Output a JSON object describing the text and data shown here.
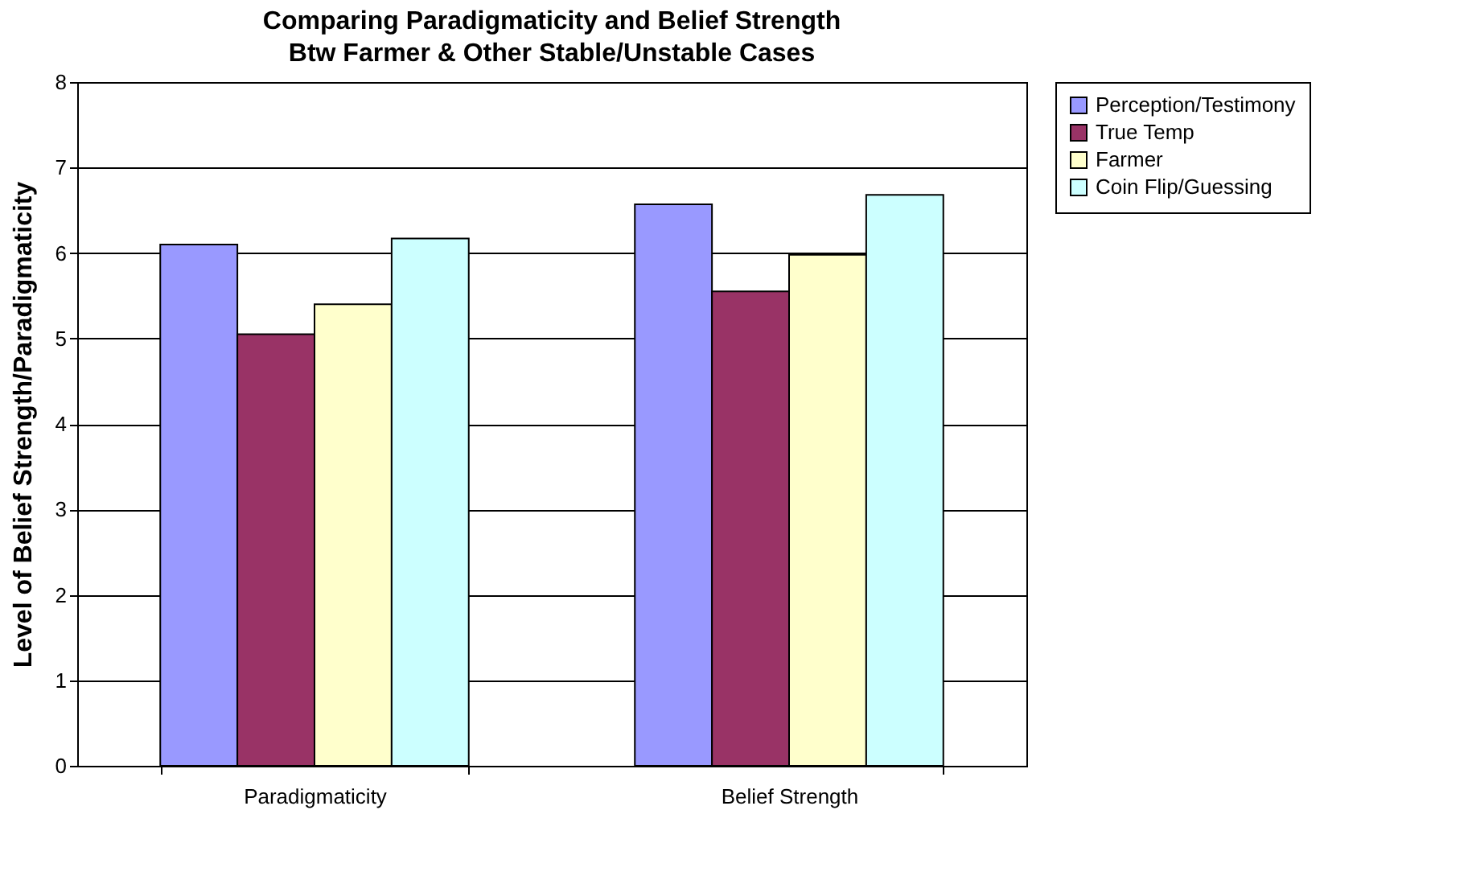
{
  "chart_data": {
    "type": "bar",
    "title": "Comparing Paradigmaticity and Belief Strength Btw Farmer & Other Stable/Unstable Cases",
    "ylabel": "Level of Belief Strength/Paradigmaticity",
    "categories": [
      "Paradigmaticity",
      "Belief Strength"
    ],
    "series": [
      {
        "name": "Perception/Testimony",
        "color": "#9999ff",
        "values": [
          6.1,
          6.57
        ]
      },
      {
        "name": "True Temp",
        "color": "#993366",
        "values": [
          5.05,
          5.55
        ]
      },
      {
        "name": "Farmer",
        "color": "#ffffcc",
        "values": [
          5.4,
          5.98
        ]
      },
      {
        "name": "Coin Flip/Guessing",
        "color": "#ccffff",
        "values": [
          6.17,
          6.68
        ]
      }
    ],
    "ylim": [
      0,
      8
    ],
    "yticks": [
      0,
      1,
      2,
      3,
      4,
      5,
      6,
      7,
      8
    ],
    "grid": "y",
    "legend": "right"
  }
}
